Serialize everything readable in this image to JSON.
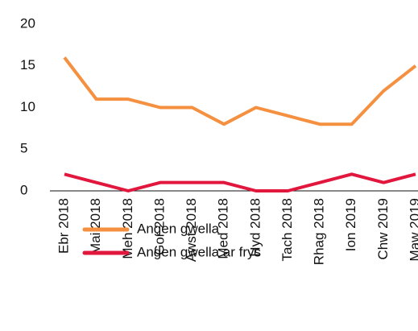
{
  "chart_data": {
    "type": "line",
    "categories": [
      "Ebr 2018",
      "Mai 2018",
      "Meh 2018",
      "Gor 2018",
      "Awst 2018",
      "Med 2018",
      "Hyd 2018",
      "Tach 2018",
      "Rhag 2018",
      "Ion 2019",
      "Chw 2019",
      "Maw 2019"
    ],
    "series": [
      {
        "name": "Angen gwella",
        "color": "#f4903f",
        "values": [
          16,
          11,
          11,
          10,
          10,
          8,
          10,
          9,
          8,
          8,
          12,
          15
        ]
      },
      {
        "name": "Angen gwella ar frys",
        "color": "#e2173e",
        "values": [
          2,
          1,
          0,
          1,
          1,
          1,
          0,
          0,
          1,
          2,
          1,
          2
        ]
      }
    ],
    "ylim": [
      0,
      20
    ],
    "yticks": [
      0,
      5,
      10,
      15,
      20
    ],
    "grid": false,
    "legend": "bottom"
  }
}
